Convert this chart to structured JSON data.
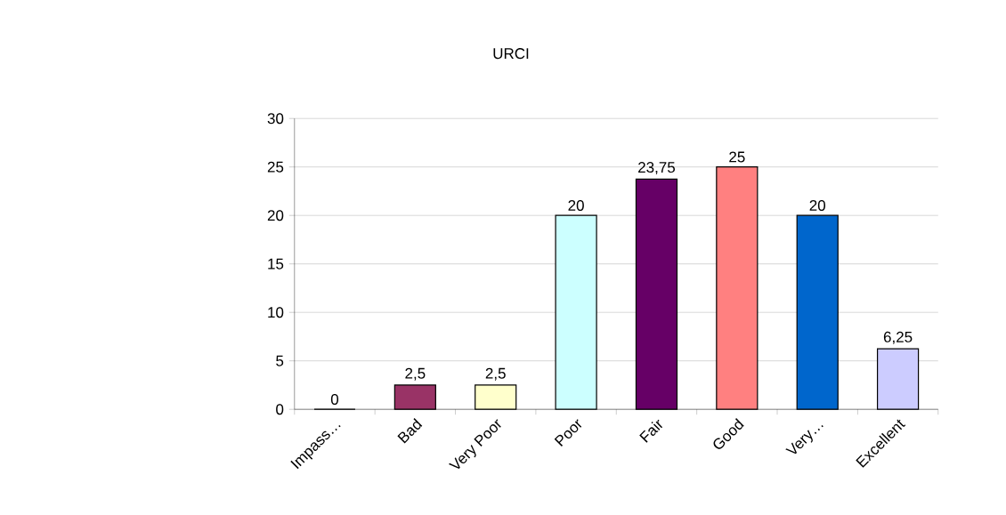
{
  "chart_data": {
    "type": "bar",
    "title": "URCI",
    "categories": [
      "Impass…",
      "Bad",
      "Very Poor",
      "Poor",
      "Fair",
      "Good",
      "Very…",
      "Excellent"
    ],
    "values": [
      0,
      2.5,
      2.5,
      20,
      23.75,
      25,
      20,
      6.25
    ],
    "colors": [
      "#9999ff",
      "#993366",
      "#ffffcc",
      "#ccffff",
      "#660066",
      "#ff8080",
      "#0066cc",
      "#ccccff"
    ],
    "value_labels": [
      "0",
      "2,5",
      "2,5",
      "20",
      "23,75",
      "25",
      "20",
      "6,25"
    ],
    "ylim": [
      0,
      30
    ],
    "yticks": [
      0,
      5,
      10,
      15,
      20,
      25,
      30
    ],
    "grid": "y"
  }
}
